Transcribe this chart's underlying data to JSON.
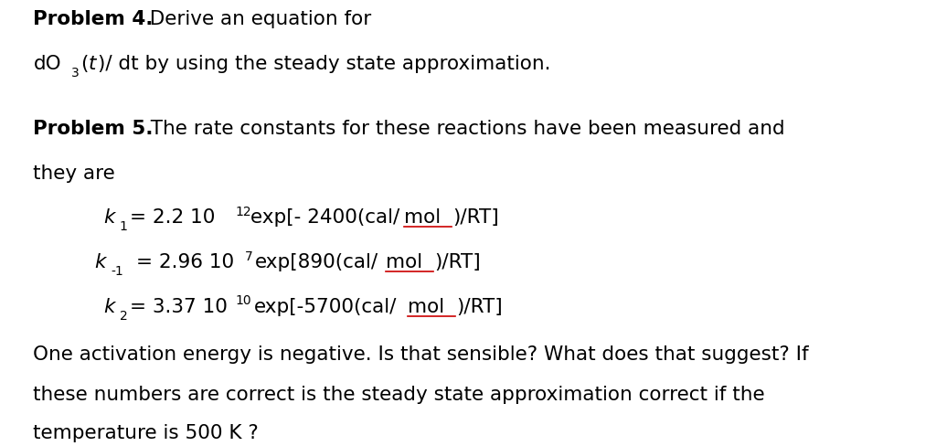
{
  "background_color": "#ffffff",
  "figsize": [
    10.36,
    4.89
  ],
  "dpi": 100,
  "font_family": "DejaVu Sans",
  "main_fontsize": 15.5,
  "sub_fontsize": 10,
  "text_color": "#000000",
  "underline_color": "#cc0000",
  "p4_bold": "Problem 4.",
  "p4_normal": "  Derive an equation for",
  "p4_line2_pre": "dO",
  "p4_line2_sub": "3",
  "p4_line2_post_open": "(",
  "p4_line2_t": "t",
  "p4_line2_post": ")/ dt by using the steady state approximation.",
  "p5_bold": "Problem 5.",
  "p5_normal": "  The rate constants for these reactions have been measured and",
  "they_are": "they are",
  "bottom1": "One activation energy is negative. Is that sensible? What does that suggest? If",
  "bottom2": "these numbers are correct is the steady state approximation correct if the",
  "bottom3": "temperature is 500 K ?"
}
